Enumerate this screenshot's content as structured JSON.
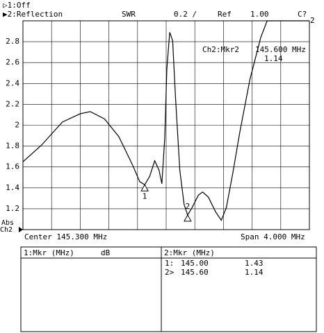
{
  "header": {
    "ch1": "▷1:Off",
    "ch2": "▶2:Reflection",
    "format": "SWR",
    "scale": "0.2 /",
    "ref_label": "Ref",
    "ref_value": "1.00",
    "cal": "C?",
    "cal_sub": "2"
  },
  "left_labels": {
    "abs": "Abs",
    "ch": "Ch2"
  },
  "chart_data": {
    "type": "line",
    "color": "#000000",
    "x": [
      143.3,
      143.56,
      143.85,
      144.1,
      144.24,
      144.44,
      144.64,
      144.83,
      144.93,
      145.0,
      145.07,
      145.14,
      145.2,
      145.24,
      145.28,
      145.31,
      145.35,
      145.39,
      145.43,
      145.49,
      145.55,
      145.6,
      145.66,
      145.75,
      145.81,
      145.89,
      145.99,
      146.07,
      146.14,
      146.23,
      146.33,
      146.47,
      146.62,
      146.71,
      147.3
    ],
    "values": [
      1.65,
      1.81,
      2.03,
      2.11,
      2.13,
      2.06,
      1.89,
      1.62,
      1.46,
      1.43,
      1.51,
      1.66,
      1.57,
      1.44,
      1.87,
      2.54,
      2.89,
      2.81,
      2.27,
      1.57,
      1.24,
      1.14,
      1.21,
      1.33,
      1.36,
      1.31,
      1.17,
      1.09,
      1.21,
      1.54,
      1.94,
      2.44,
      2.84,
      3.0,
      3.0
    ],
    "xlim": [
      143.3,
      147.3
    ],
    "ylim": [
      1.0,
      3.0
    ],
    "yticks": [
      1.2,
      1.4,
      1.6,
      1.8,
      2,
      2.2,
      2.4,
      2.6,
      2.8
    ],
    "xgrid": [
      143.7,
      144.1,
      144.5,
      144.9,
      145.3,
      145.7,
      146.1,
      146.5,
      146.9
    ],
    "grid": true,
    "markers": [
      {
        "label": "1",
        "x": 145.0,
        "y": 1.43
      },
      {
        "label": "2",
        "x": 145.6,
        "y": 1.14
      }
    ],
    "marker_readout": {
      "title": "Ch2:Mkr2",
      "freq": "145.600 MHz",
      "value": "1.14"
    },
    "center": "Center 145.300 MHz",
    "span": "Span 4.000 MHz"
  },
  "table": {
    "left": {
      "title": "1:Mkr (MHz)",
      "unit": "dB"
    },
    "right": {
      "title": "2:Mkr (MHz)",
      "rows": [
        [
          "1:",
          "145.00",
          "1.43"
        ],
        [
          "2>",
          "145.60",
          "1.14"
        ]
      ]
    }
  }
}
